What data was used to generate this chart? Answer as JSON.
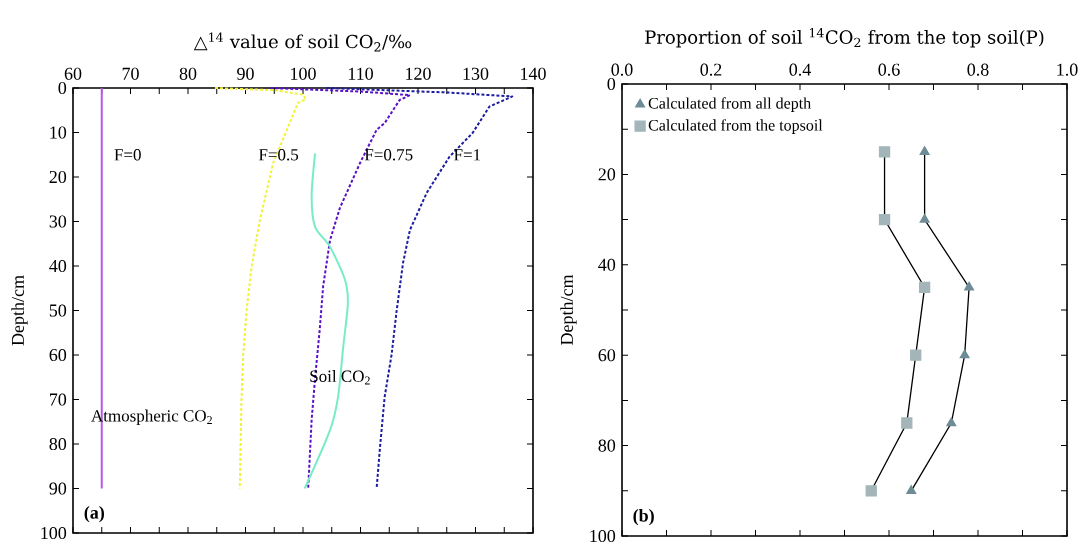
{
  "chart_data": [
    {
      "type": "line",
      "xlabel": "△$^{14}$ value of soil CO$_{2}$/‰",
      "ylabel": "Depth/cm",
      "xlim": [
        60,
        140
      ],
      "ylim": [
        100,
        0
      ],
      "xticks": [
        60,
        {
          "value": 65,
          "label": null
        },
        70,
        {
          "value": 75,
          "label": null
        },
        80,
        {
          "value": 85,
          "label": null
        },
        90,
        {
          "value": 95,
          "label": null
        },
        100,
        {
          "value": 105,
          "label": null
        },
        110,
        {
          "value": 115,
          "label": null
        },
        120,
        {
          "value": 125,
          "label": null
        },
        130,
        {
          "value": 135,
          "label": null
        },
        140
      ],
      "yticks": [
        0,
        10,
        20,
        30,
        40,
        50,
        60,
        70,
        80,
        90,
        100
      ],
      "series": [
        {
          "name": "Atmospheric CO$_{2}$",
          "color": "#b45ae6",
          "line_style": "solid",
          "x": [
            65,
            65
          ],
          "values": [
            0,
            90
          ]
        },
        {
          "name": "F=0.5",
          "color": "#f2f23c",
          "line_style": "dotted",
          "x": [
            84.7,
            95,
            100,
            100.5,
            99.1,
            97.2,
            94.8,
            92.5,
            91.1,
            90.2,
            89.6,
            89.3,
            89.0
          ],
          "values": [
            0,
            0.5,
            1.5,
            2.5,
            3.4,
            9.4,
            16.9,
            29.7,
            39.8,
            49.9,
            60,
            70.1,
            90
          ]
        },
        {
          "name": "F=0.75",
          "color": "#5a10c8",
          "line_style": "dotted",
          "x": [
            94.3,
            110,
            118.6,
            116.8,
            114.2,
            112.8,
            109.9,
            106.4,
            104.7,
            103.5,
            102.9,
            102.1,
            101.5,
            100.9
          ],
          "values": [
            0,
            0.8,
            1.6,
            2.7,
            7.9,
            9.4,
            16.9,
            27,
            34.2,
            44.6,
            54.4,
            65.2,
            74.6,
            90
          ]
        },
        {
          "name": "F=1",
          "color": "#1c1ca0",
          "line_style": "dotted",
          "x": [
            104.1,
            125,
            136.4,
            132.4,
            129.5,
            125.5,
            121.5,
            118.6,
            117.4,
            116.3,
            115.4,
            114.2,
            113.4,
            112.8
          ],
          "values": [
            0,
            1,
            1.9,
            4.2,
            10.1,
            15.4,
            23.6,
            31.9,
            39.3,
            49.9,
            60,
            69.4,
            80.6,
            90
          ]
        },
        {
          "name": "Soil CO$_{2}$",
          "color": "#78ecc4",
          "line_style": "solid",
          "x": [
            102.1,
            101.5,
            102.1,
            104.7,
            107.3,
            107.8,
            107,
            106.1,
            104.7,
            100.3
          ],
          "values": [
            14.7,
            24.4,
            31.2,
            35.7,
            43.1,
            48.4,
            58.1,
            69.4,
            76.9,
            90
          ]
        }
      ],
      "annotations": [
        {
          "text": "F=0",
          "x": 65,
          "y": 15
        },
        "(a)"
      ]
    },
    {
      "type": "line",
      "xlabel": "Proportion of soil $^{14}$CO$_{2}$ from the top soil(P)",
      "ylabel": "Depth/cm",
      "xlim": [
        0,
        1
      ],
      "ylim": [
        100,
        0
      ],
      "xticks": [
        {
          "value": 0,
          "label": "0.0"
        },
        {
          "value": 0.1,
          "label": null
        },
        {
          "value": 0.2,
          "label": "0.2"
        },
        {
          "value": 0.3,
          "label": null
        },
        {
          "value": 0.4,
          "label": "0.4"
        },
        {
          "value": 0.5,
          "label": null
        },
        {
          "value": 0.6,
          "label": "0.6"
        },
        {
          "value": 0.7,
          "label": null
        },
        {
          "value": 0.8,
          "label": "0.8"
        },
        {
          "value": 0.9,
          "label": null
        },
        {
          "value": 1,
          "label": "1.0"
        }
      ],
      "yticks": [
        0,
        {
          "value": 10,
          "label": null
        },
        20,
        {
          "value": 30,
          "label": null
        },
        40,
        {
          "value": 50,
          "label": null
        },
        60,
        {
          "value": 70,
          "label": null
        },
        80,
        {
          "value": 90,
          "label": null
        },
        100
      ],
      "legend": "top left",
      "series": [
        {
          "name": "Calculated from all depth",
          "color": "#6e8c96",
          "marker": "triangle",
          "x": [
            0.68,
            0.68,
            0.78,
            0.77,
            0.74,
            0.65
          ],
          "values": [
            15,
            30,
            45,
            60,
            75,
            90
          ]
        },
        {
          "name": "Calculated from the topsoil",
          "color": "#a3b5b8",
          "marker": "square",
          "x": [
            0.59,
            0.59,
            0.68,
            0.66,
            0.64,
            0.56
          ],
          "values": [
            15,
            30,
            45,
            60,
            75,
            90
          ]
        }
      ],
      "annotations": [
        "(b)"
      ]
    }
  ]
}
